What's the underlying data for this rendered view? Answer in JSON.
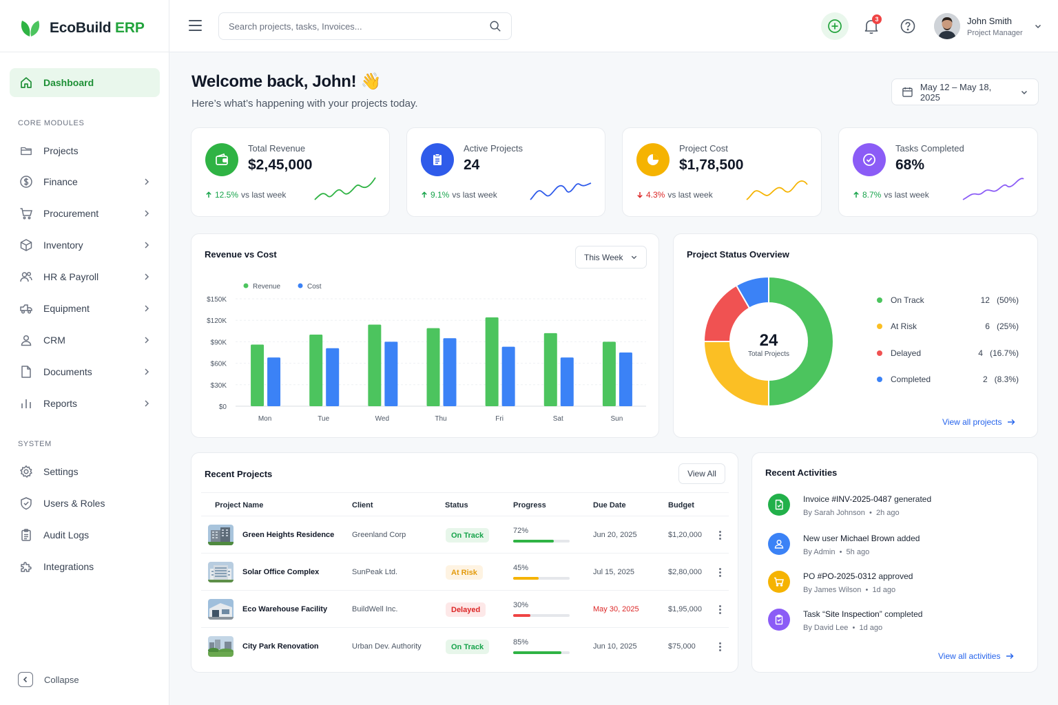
{
  "brand": {
    "name": "EcoBuild",
    "suffix": "ERP"
  },
  "sidebar": {
    "dashboard": "Dashboard",
    "core_label": "CORE MODULES",
    "core_items": [
      "Projects",
      "Finance",
      "Procurement",
      "Inventory",
      "HR & Payroll",
      "Equipment",
      "CRM",
      "Documents",
      "Reports"
    ],
    "system_label": "SYSTEM",
    "system_items": [
      "Settings",
      "Users & Roles",
      "Audit Logs",
      "Integrations"
    ],
    "collapse": "Collapse"
  },
  "header": {
    "search_placeholder": "Search projects, tasks, Invoices...",
    "notification_count": "3",
    "user_name": "John Smith",
    "user_role": "Project Manager"
  },
  "page": {
    "welcome": "Welcome back, John! 👋",
    "subtitle": "Here’s what’s happening with your projects today.",
    "date_range": "May 12 – May 18, 2025"
  },
  "kpis": [
    {
      "label": "Total Revenue",
      "value": "$2,45,000",
      "change": "12.5%",
      "direction": "up",
      "suffix": "vs last week",
      "color": "#2fb344",
      "icon": "wallet-icon"
    },
    {
      "label": "Active Projects",
      "value": "24",
      "change": "9.1%",
      "direction": "up",
      "suffix": "vs last week",
      "color": "#2f5bea",
      "icon": "clipboard-icon"
    },
    {
      "label": "Project Cost",
      "value": "$1,78,500",
      "change": "4.3%",
      "direction": "down",
      "suffix": "vs last week",
      "color": "#f5b301",
      "icon": "pie-icon"
    },
    {
      "label": "Tasks Completed",
      "value": "68%",
      "change": "8.7%",
      "direction": "up",
      "suffix": "vs last week",
      "color": "#8b5cf6",
      "icon": "check-circle-icon"
    }
  ],
  "revenue_chart": {
    "title": "Revenue vs Cost",
    "period": "This Week",
    "legend": [
      "Revenue",
      "Cost"
    ]
  },
  "status_overview": {
    "title": "Project Status Overview",
    "total": "24",
    "total_label": "Total Projects",
    "items": [
      {
        "label": "On Track",
        "count": "12",
        "pct": "(50%)",
        "color": "#4cc45e"
      },
      {
        "label": "At Risk",
        "count": "6",
        "pct": "(25%)",
        "color": "#fbbf24"
      },
      {
        "label": "Delayed",
        "count": "4",
        "pct": "(16.7%)",
        "color": "#f05252"
      },
      {
        "label": "Completed",
        "count": "2",
        "pct": "(8.3%)",
        "color": "#3b82f6"
      }
    ],
    "link": "View all projects"
  },
  "recent_projects": {
    "title": "Recent Projects",
    "view_all": "View All",
    "columns": [
      "Project Name",
      "Client",
      "Status",
      "Progress",
      "Due Date",
      "Budget"
    ],
    "rows": [
      {
        "name": "Green Heights Residence",
        "client": "Greenland Corp",
        "status": "On Track",
        "tone": "green",
        "progress": "72%",
        "progress_value": 72,
        "due": "Jun 20, 2025",
        "due_overdue": false,
        "budget": "$1,20,000"
      },
      {
        "name": "Solar Office Complex",
        "client": "SunPeak Ltd.",
        "status": "At Risk",
        "tone": "amber",
        "progress": "45%",
        "progress_value": 45,
        "due": "Jul 15, 2025",
        "due_overdue": false,
        "budget": "$2,80,000"
      },
      {
        "name": "Eco Warehouse Facility",
        "client": "BuildWell Inc.",
        "status": "Delayed",
        "tone": "red",
        "progress": "30%",
        "progress_value": 30,
        "due": "May 30, 2025",
        "due_overdue": true,
        "budget": "$1,95,000"
      },
      {
        "name": "City Park Renovation",
        "client": "Urban Dev. Authority",
        "status": "On Track",
        "tone": "green",
        "progress": "85%",
        "progress_value": 85,
        "due": "Jun 10, 2025",
        "due_overdue": false,
        "budget": "$75,000"
      }
    ]
  },
  "activities": {
    "title": "Recent Activities",
    "items": [
      {
        "pre": "Invoice ",
        "strong": "#INV-2025-0487",
        "post": " generated",
        "by": "By Sarah Johnson",
        "time": "2h ago",
        "color": "#22b04a",
        "icon": "document-icon"
      },
      {
        "pre": "New user ",
        "strong": "Michael Brown",
        "post": " added",
        "by": "By Admin",
        "time": "5h ago",
        "color": "#3b82f6",
        "icon": "user-icon"
      },
      {
        "pre": "PO ",
        "strong": "#PO-2025-0312",
        "post": " approved",
        "by": "By James Wilson",
        "time": "1d ago",
        "color": "#f5b301",
        "icon": "cart-icon"
      },
      {
        "pre": "Task “",
        "strong": "Site Inspection",
        "post": "” completed",
        "by": "By David Lee",
        "time": "1d ago",
        "color": "#8b5cf6",
        "icon": "clipboard-icon"
      }
    ],
    "link": "View all activities"
  },
  "chart_data": {
    "type": "bar",
    "categories": [
      "Mon",
      "Tue",
      "Wed",
      "Thu",
      "Fri",
      "Sat",
      "Sun"
    ],
    "series": [
      {
        "name": "Revenue",
        "values": [
          86000,
          100000,
          114000,
          109000,
          124000,
          102000,
          90000
        ],
        "color": "#4cc45e"
      },
      {
        "name": "Cost",
        "values": [
          68000,
          81000,
          90000,
          95000,
          83000,
          68000,
          75000
        ],
        "color": "#3b82f6"
      }
    ],
    "ylim": [
      0,
      150000
    ],
    "yticks": [
      "$0",
      "$30K",
      "$60K",
      "$90K",
      "$120K",
      "$150K"
    ],
    "grid": true,
    "legend_position": "top-left"
  }
}
